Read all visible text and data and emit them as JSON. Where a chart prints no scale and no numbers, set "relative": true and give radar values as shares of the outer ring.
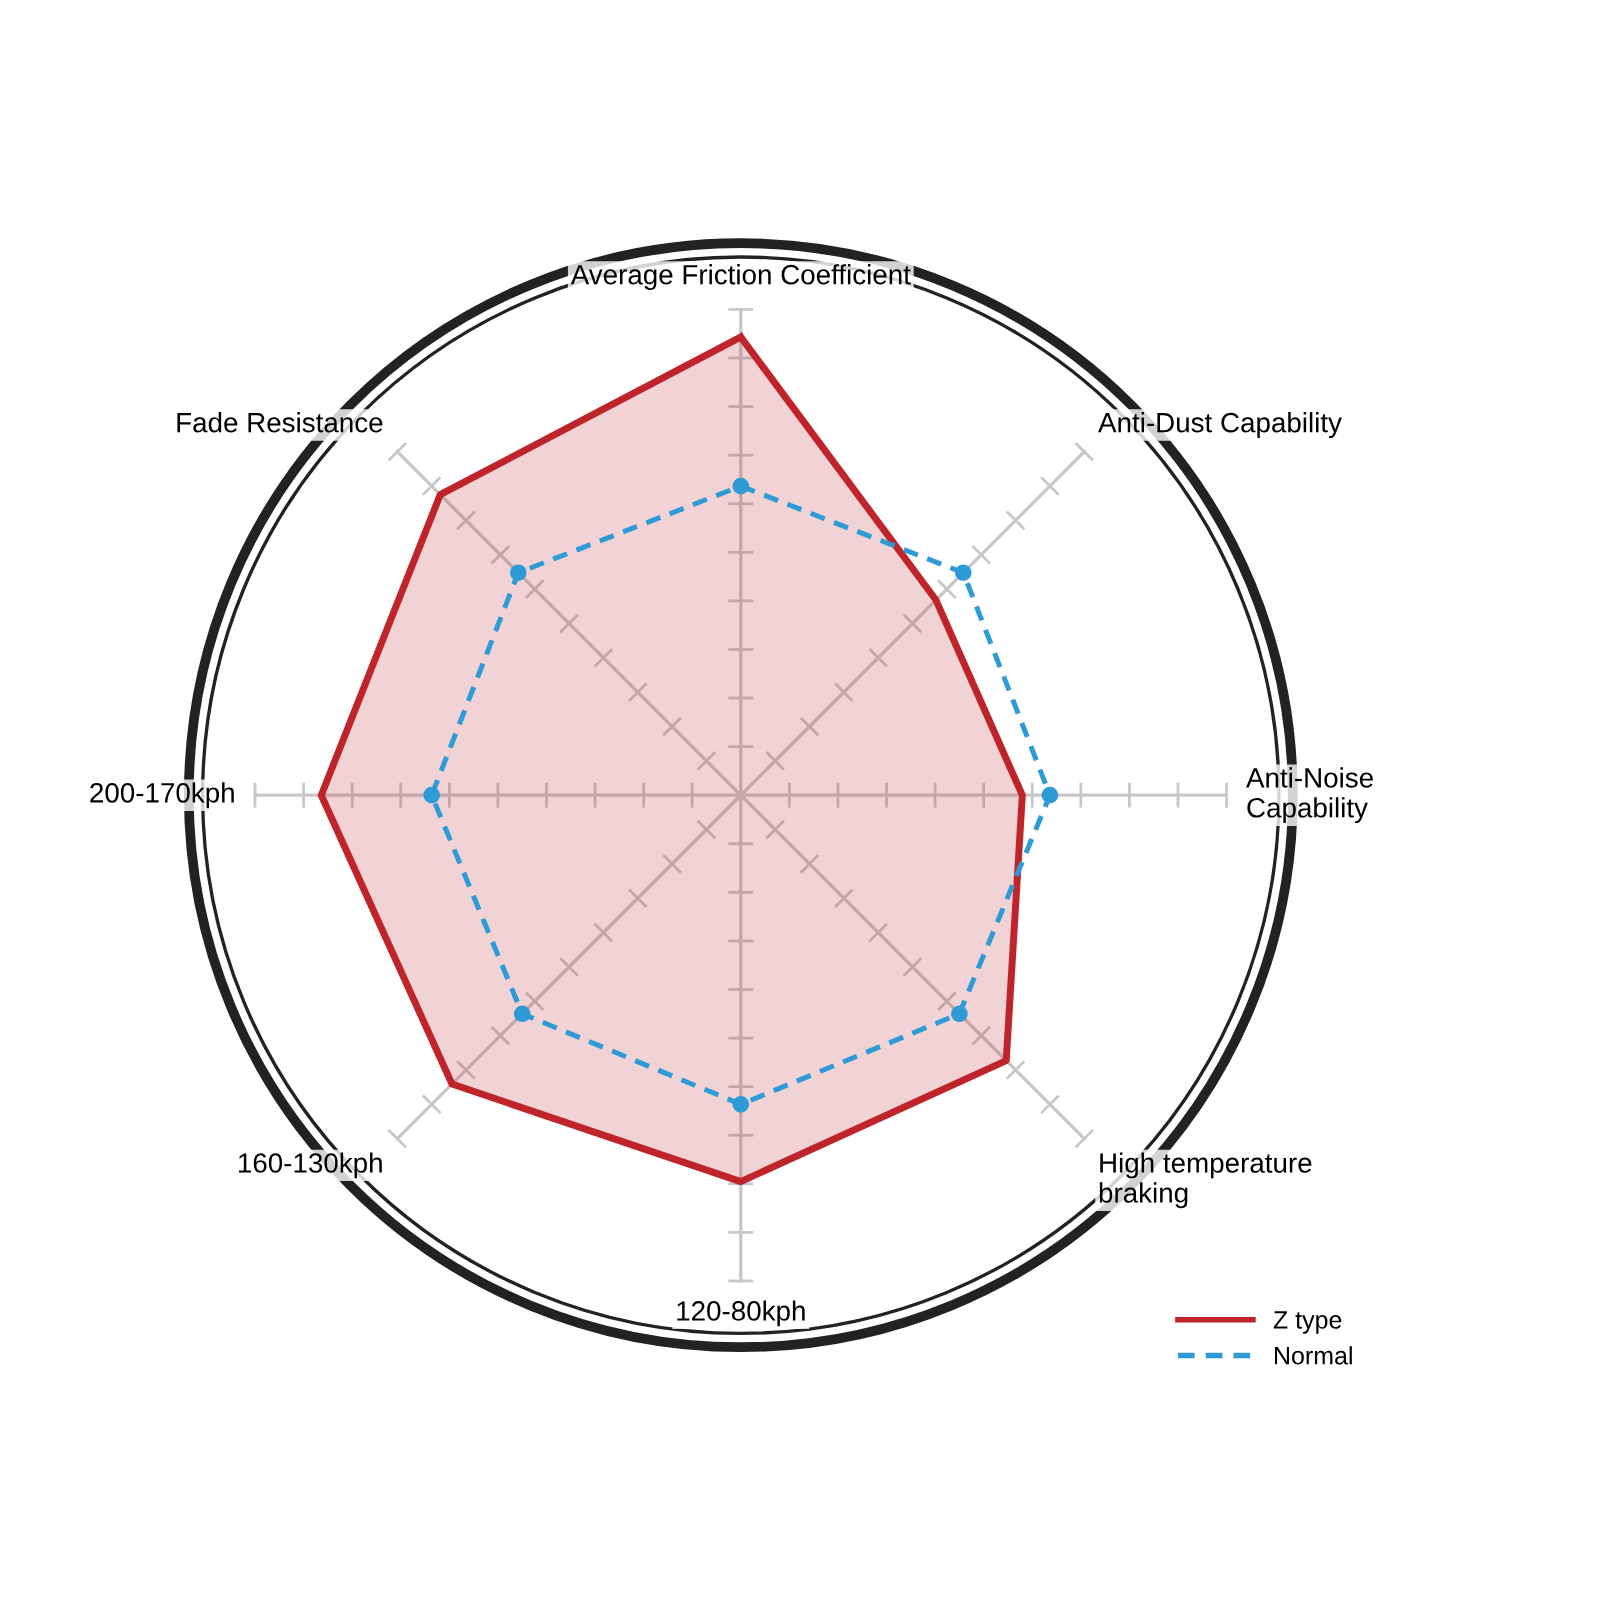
{
  "chart_data": {
    "type": "radar",
    "relative": true,
    "categories": [
      "Average Friction Coefficient",
      "Anti-Dust Capability",
      "Anti-Noise\nCapability",
      "High temperature\nbraking",
      "120-80kph",
      "160-130kph",
      "200-170kph",
      "Fade Resistance"
    ],
    "series": [
      {
        "name": "Z type",
        "type": "area",
        "color": "#c0242b",
        "line_style": "solid",
        "marker": "none",
        "values": [
          0.83,
          0.5,
          0.51,
          0.68,
          0.7,
          0.74,
          0.76,
          0.77
        ]
      },
      {
        "name": "Normal",
        "color": "#2e9bd6",
        "line_style": "dashed",
        "marker": "circle",
        "values": [
          0.56,
          0.57,
          0.56,
          0.56,
          0.56,
          0.56,
          0.56,
          0.57
        ]
      }
    ],
    "legend": "bottom right",
    "grid": true
  }
}
